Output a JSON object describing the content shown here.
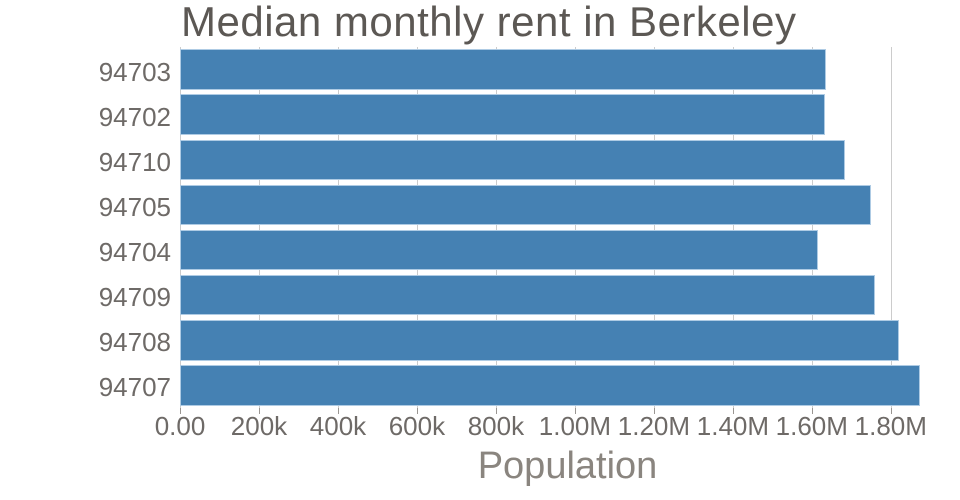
{
  "chart_data": {
    "type": "bar",
    "orientation": "horizontal",
    "title": "Median monthly rent in Berkeley",
    "xlabel": "Population",
    "ylabel": "",
    "categories": [
      "94703",
      "94702",
      "94710",
      "94705",
      "94704",
      "94709",
      "94708",
      "94707"
    ],
    "values": [
      1636000,
      1633000,
      1685000,
      1750000,
      1615000,
      1760000,
      1820000,
      1875000
    ],
    "xlim": [
      0,
      1962500
    ],
    "xticks": [
      {
        "value": 0,
        "label": "0.00"
      },
      {
        "value": 200000,
        "label": "200k"
      },
      {
        "value": 400000,
        "label": "400k"
      },
      {
        "value": 600000,
        "label": "600k"
      },
      {
        "value": 800000,
        "label": "800k"
      },
      {
        "value": 1000000,
        "label": "1.00M"
      },
      {
        "value": 1200000,
        "label": "1.20M"
      },
      {
        "value": 1400000,
        "label": "1.40M"
      },
      {
        "value": 1600000,
        "label": "1.60M"
      },
      {
        "value": 1800000,
        "label": "1.80M"
      }
    ],
    "grid": "vertical-on",
    "legend": "none",
    "colors": {
      "bar_fill": "#4581b3",
      "bar_edge": "#aecbe4",
      "gridline": "#cccccc",
      "tick_mark": "#9a9692",
      "tick_label_text": "#6e6a67",
      "title_text": "#5c5854",
      "axis_title_text": "#8a857f",
      "background": "#ffffff"
    }
  }
}
